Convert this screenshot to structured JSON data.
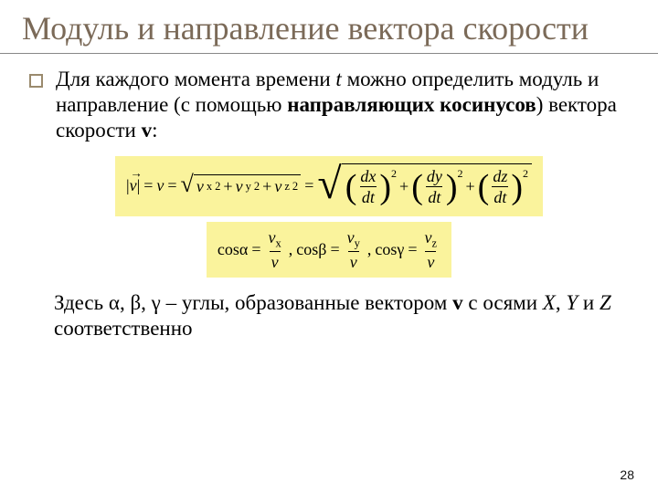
{
  "title": "Модуль и направление вектора скорости",
  "para_segments": {
    "s1": "Для каждого момента времени ",
    "s_t": "t",
    "s2": " можно определить модуль и направление (с помощью ",
    "s_bold": "направляющих косинусов",
    "s3": ") вектора скорости ",
    "s_v": "v",
    "s4": ":"
  },
  "formula1": {
    "bg": "#faf39c",
    "lhs_abs": "|v|",
    "eq": " = ",
    "v": "v",
    "vx": "v",
    "vx_sub": "x",
    "vy": "v",
    "vy_sub": "y",
    "vz": "v",
    "vz_sub": "z",
    "dx": "dx",
    "dy": "dy",
    "dz": "dz",
    "dt": "dt",
    "sq": "2",
    "plus": " + "
  },
  "formula2": {
    "bg": "#faf39c",
    "cos": "cos",
    "a": "α",
    "b": "β",
    "g": "γ",
    "eq": " = ",
    "vx": "v",
    "vx_sub": "x",
    "vy": "v",
    "vy_sub": "y",
    "vz": "v",
    "vz_sub": "z",
    "v": "v",
    "comma": ", "
  },
  "after": {
    "s1": "Здесь ",
    "a": "α",
    "c1": ", ",
    "b": "β",
    "c2": ", ",
    "g": "γ",
    "s2": " – углы, образованные вектором ",
    "v": "v",
    "s3": " с осями ",
    "X": "X",
    "c3": ", ",
    "Y": "Y",
    "s4": " и ",
    "Z": "Z",
    "s5": " соответственно"
  },
  "page_number": "28",
  "colors": {
    "title": "#7b6a58",
    "bullet_border": "#9a8a6d",
    "formula_bg": "#faf39c"
  }
}
